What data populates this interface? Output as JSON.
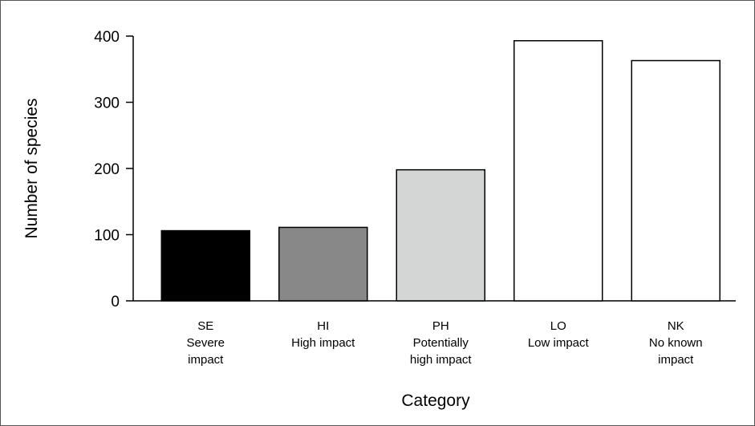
{
  "chart_data": {
    "type": "bar",
    "title": "",
    "xlabel": "Category",
    "ylabel": "Number of species",
    "ylim": [
      0,
      400
    ],
    "yticks": [
      0,
      100,
      200,
      300,
      400
    ],
    "categories": [
      {
        "code": "SE",
        "lines": [
          "Severe",
          "impact"
        ]
      },
      {
        "code": "HI",
        "lines": [
          "High impact"
        ]
      },
      {
        "code": "PH",
        "lines": [
          "Potentially",
          "high impact"
        ]
      },
      {
        "code": "LO",
        "lines": [
          "Low impact"
        ]
      },
      {
        "code": "NK",
        "lines": [
          "No known",
          "impact"
        ]
      }
    ],
    "values": [
      106,
      111,
      198,
      393,
      363
    ],
    "colors": [
      "#000000",
      "#888888",
      "#d4d6d6",
      "#ffffff",
      "#ffffff"
    ],
    "grid": false,
    "legend": "none"
  }
}
